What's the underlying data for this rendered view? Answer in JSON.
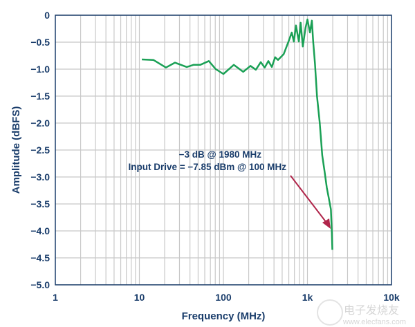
{
  "chart_data": {
    "type": "line",
    "title": "",
    "xlabel": "Frequency (MHz)",
    "ylabel": "Amplitude (dBFS)",
    "xscale": "log",
    "xlim": [
      1,
      10000
    ],
    "ylim": [
      -5.0,
      0
    ],
    "grid": true,
    "x_ticks": [
      {
        "v": 1,
        "label": "1"
      },
      {
        "v": 10,
        "label": "10"
      },
      {
        "v": 100,
        "label": "100"
      },
      {
        "v": 1000,
        "label": "1k"
      },
      {
        "v": 10000,
        "label": "10k"
      }
    ],
    "y_ticks": [
      {
        "v": 0,
        "label": "0"
      },
      {
        "v": -0.5,
        "label": "-0.5"
      },
      {
        "v": -1,
        "label": "-1.0"
      },
      {
        "v": -1.5,
        "label": "-1.5"
      },
      {
        "v": -2,
        "label": "-2.0"
      },
      {
        "v": -2.5,
        "label": "-2.5"
      },
      {
        "v": -3,
        "label": "-3.0"
      },
      {
        "v": -3.5,
        "label": "-3.5"
      },
      {
        "v": -4,
        "label": "-4.0"
      },
      {
        "v": -4.5,
        "label": "-4.5"
      },
      {
        "v": -5,
        "label": "-5.0"
      }
    ],
    "series": [
      {
        "name": "Amplitude",
        "color": "#1aa055",
        "x": [
          10.7,
          14.7,
          20.7,
          26.5,
          36.6,
          44,
          53,
          67,
          81,
          100,
          133,
          172,
          210,
          243,
          278,
          310,
          343,
          377,
          413,
          446,
          522,
          595,
          650,
          690,
          730,
          790,
          830,
          880,
          950,
          1000,
          1070,
          1130,
          1170,
          1230,
          1300,
          1400,
          1500,
          1600,
          1700,
          1800,
          1900,
          1950,
          1980
        ],
        "y": [
          -0.82,
          -0.83,
          -0.97,
          -0.88,
          -0.96,
          -0.92,
          -0.92,
          -0.85,
          -1.0,
          -1.09,
          -0.92,
          -1.05,
          -0.94,
          -1.01,
          -0.87,
          -0.97,
          -0.85,
          -0.96,
          -0.78,
          -0.83,
          -0.72,
          -0.49,
          -0.32,
          -0.49,
          -0.19,
          -0.49,
          -0.14,
          -0.58,
          -0.23,
          -0.08,
          -0.32,
          -0.1,
          -0.49,
          -0.9,
          -1.5,
          -2.0,
          -2.6,
          -2.9,
          -3.2,
          -3.4,
          -3.6,
          -4.0,
          -4.35
        ]
      }
    ],
    "annotations": [
      {
        "text": "−3 dB @ 1980 MHz"
      },
      {
        "text": "Input Drive = −7.85 dBm @ 100 MHz"
      }
    ],
    "arrow_color": "#b0254a"
  },
  "watermark": {
    "text_cn": "电子发烧友",
    "text_url": "www.elecfans.com"
  }
}
